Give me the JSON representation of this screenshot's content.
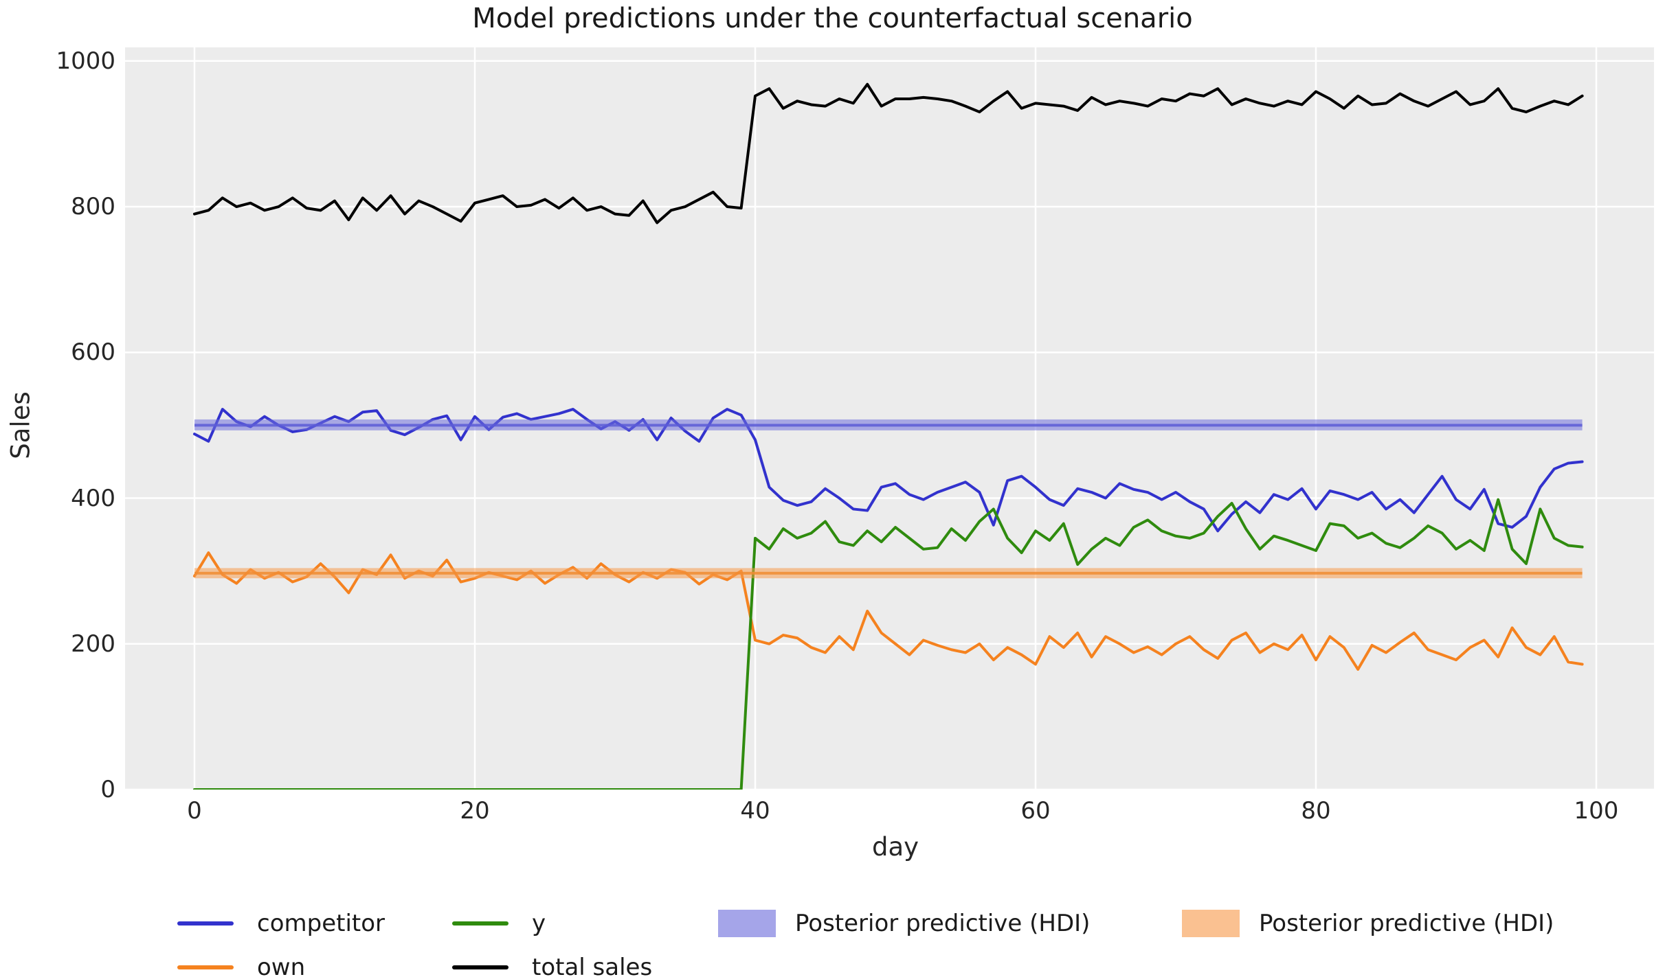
{
  "title": "Model predictions under the counterfactual scenario",
  "axes": {
    "xlabel": "day",
    "ylabel": "Sales",
    "x_ticks": [
      0,
      20,
      40,
      60,
      80,
      100
    ],
    "y_ticks": [
      0,
      200,
      400,
      600,
      800,
      1000
    ]
  },
  "colors": {
    "plot_background": "#ececec",
    "gridline": "#ffffff",
    "competitor": "#3232cd",
    "own": "#f5821f",
    "y": "#2f8b0e",
    "total_sales": "#000000",
    "hdi_blue_fill": "#6f6fdd",
    "hdi_blue_mean": "#5c5cd6",
    "hdi_orange_fill": "#f79c4e",
    "hdi_orange_mean": "#f08c33",
    "text": "#262626"
  },
  "legend": {
    "items": [
      {
        "label": "competitor",
        "type": "line",
        "color": "#3232cd"
      },
      {
        "label": "own",
        "type": "line",
        "color": "#f5821f"
      },
      {
        "label": "y",
        "type": "line",
        "color": "#2f8b0e"
      },
      {
        "label": "total sales",
        "type": "line",
        "color": "#000000"
      },
      {
        "label": "Posterior predictive (HDI)",
        "type": "patch",
        "color": "#6f6fdd"
      },
      {
        "label": "Posterior predictive (HDI)",
        "type": "patch",
        "color": "#f79c4e"
      }
    ]
  },
  "chart_data": {
    "type": "line",
    "title": "Model predictions under the counterfactual scenario",
    "xlabel": "day",
    "ylabel": "Sales",
    "xlim": [
      0,
      100
    ],
    "ylim": [
      0,
      1000
    ],
    "grid": true,
    "legend_position": "below",
    "x_min": 0,
    "x_step": 1,
    "n_points": 100,
    "series": [
      {
        "name": "competitor",
        "color": "#3232cd",
        "values": [
          488,
          478,
          522,
          505,
          498,
          512,
          500,
          491,
          494,
          503,
          512,
          505,
          518,
          520,
          493,
          487,
          497,
          508,
          513,
          480,
          512,
          494,
          511,
          516,
          508,
          512,
          516,
          522,
          508,
          495,
          505,
          493,
          508,
          480,
          510,
          492,
          478,
          510,
          522,
          514,
          480,
          415,
          397,
          390,
          395,
          413,
          400,
          385,
          383,
          415,
          420,
          405,
          398,
          408,
          415,
          422,
          408,
          363,
          424,
          430,
          415,
          398,
          390,
          413,
          408,
          400,
          420,
          412,
          408,
          398,
          408,
          395,
          385,
          355,
          378,
          395,
          380,
          405,
          398,
          413,
          385,
          410,
          405,
          398,
          408,
          385,
          398,
          380,
          405,
          430,
          398,
          385,
          412,
          365,
          360,
          375,
          415,
          440,
          448,
          450
        ]
      },
      {
        "name": "own",
        "color": "#f5821f",
        "values": [
          293,
          325,
          295,
          283,
          302,
          290,
          298,
          285,
          292,
          310,
          292,
          270,
          302,
          295,
          322,
          290,
          300,
          293,
          315,
          285,
          290,
          298,
          293,
          288,
          300,
          283,
          295,
          305,
          290,
          310,
          295,
          285,
          298,
          290,
          302,
          298,
          282,
          295,
          288,
          300,
          205,
          200,
          212,
          208,
          195,
          188,
          210,
          192,
          245,
          215,
          200,
          185,
          205,
          198,
          192,
          188,
          200,
          178,
          195,
          185,
          172,
          210,
          195,
          215,
          182,
          210,
          200,
          188,
          196,
          185,
          200,
          210,
          192,
          180,
          205,
          215,
          188,
          200,
          192,
          212,
          178,
          210,
          195,
          165,
          198,
          188,
          202,
          215,
          192,
          185,
          178,
          195,
          205,
          182,
          222,
          195,
          185,
          210,
          175,
          172
        ]
      },
      {
        "name": "y",
        "color": "#2f8b0e",
        "values": [
          0,
          0,
          0,
          0,
          0,
          0,
          0,
          0,
          0,
          0,
          0,
          0,
          0,
          0,
          0,
          0,
          0,
          0,
          0,
          0,
          0,
          0,
          0,
          0,
          0,
          0,
          0,
          0,
          0,
          0,
          0,
          0,
          0,
          0,
          0,
          0,
          0,
          0,
          0,
          0,
          345,
          330,
          358,
          345,
          352,
          368,
          340,
          335,
          355,
          340,
          360,
          345,
          330,
          332,
          358,
          342,
          368,
          385,
          345,
          325,
          355,
          342,
          365,
          309,
          330,
          345,
          335,
          360,
          370,
          355,
          348,
          345,
          352,
          375,
          393,
          358,
          330,
          348,
          342,
          335,
          328,
          365,
          362,
          345,
          352,
          338,
          332,
          345,
          362,
          352,
          330,
          342,
          328,
          398,
          330,
          310,
          385,
          345,
          335,
          333
        ]
      },
      {
        "name": "total sales",
        "color": "#000000",
        "values": [
          790,
          795,
          812,
          800,
          805,
          795,
          800,
          812,
          798,
          795,
          808,
          782,
          812,
          795,
          815,
          790,
          808,
          800,
          790,
          780,
          805,
          810,
          815,
          800,
          802,
          810,
          798,
          812,
          795,
          800,
          790,
          788,
          808,
          778,
          795,
          800,
          810,
          820,
          800,
          798,
          952,
          962,
          935,
          945,
          940,
          938,
          948,
          942,
          968,
          938,
          948,
          948,
          950,
          948,
          945,
          938,
          930,
          945,
          958,
          935,
          942,
          940,
          938,
          932,
          950,
          940,
          945,
          942,
          938,
          948,
          945,
          955,
          952,
          962,
          940,
          948,
          942,
          938,
          945,
          940,
          958,
          948,
          935,
          952,
          940,
          942,
          955,
          945,
          938,
          948,
          958,
          940,
          945,
          962,
          935,
          930,
          938,
          945,
          940,
          952
        ]
      }
    ],
    "bands": [
      {
        "name": "Posterior predictive (HDI)",
        "series": "competitor",
        "lo": 493,
        "hi": 508,
        "mean": 500,
        "fill": "#6f6fdd",
        "mean_color": "#5c5cd6"
      },
      {
        "name": "Posterior predictive (HDI)",
        "series": "own",
        "lo": 290,
        "hi": 304,
        "mean": 297,
        "fill": "#f79c4e",
        "mean_color": "#f08c33"
      }
    ]
  }
}
